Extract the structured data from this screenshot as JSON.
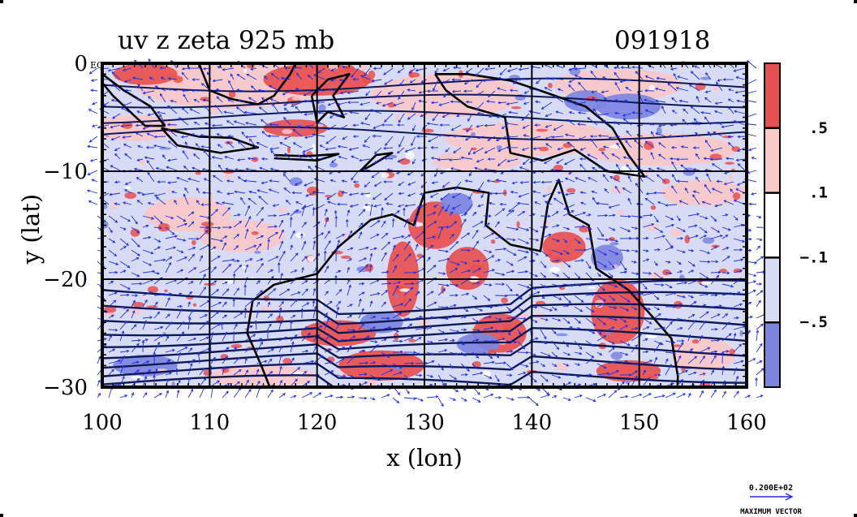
{
  "chart_data": {
    "type": "heatmap",
    "title_left": "uv z zeta 925 mb",
    "title_right": "091918",
    "xlabel": "x (lon)",
    "ylabel": "y (lat)",
    "xlim": [
      100,
      160
    ],
    "ylim": [
      -30,
      0
    ],
    "x_ticks": [
      100,
      110,
      120,
      130,
      140,
      150,
      160
    ],
    "y_ticks": [
      {
        "value": 0,
        "label": "0"
      },
      {
        "value": -10,
        "label": "−10"
      },
      {
        "value": -20,
        "label": "−20"
      },
      {
        "value": -30,
        "label": "−30"
      }
    ],
    "y_tick_suffix_at_top": "EQ",
    "grid": true,
    "grid_x": [
      110,
      120,
      130,
      140,
      150
    ],
    "grid_y": [
      -10,
      -20
    ],
    "colorbar": {
      "levels": [
        -0.5,
        -0.1,
        0.1,
        0.5
      ],
      "labels": [
        ".5",
        ".1",
        "−.1",
        "−.5"
      ],
      "colors": [
        "#e8504f",
        "#f9c9c9",
        "#ffffff",
        "#d7dbf5",
        "#7b86e0"
      ]
    },
    "vector_legend": {
      "value_label": "0.200E+02",
      "caption": "MAXIMUM VECTOR"
    },
    "colors": {
      "positive_strong": "#e8504f",
      "positive_weak": "#f9c9c9",
      "negative_weak": "#d7dbf5",
      "negative_strong": "#7b86e0",
      "vectors": "#1f2fe0",
      "contours": "#0d1a55",
      "coast": "#000000"
    }
  }
}
